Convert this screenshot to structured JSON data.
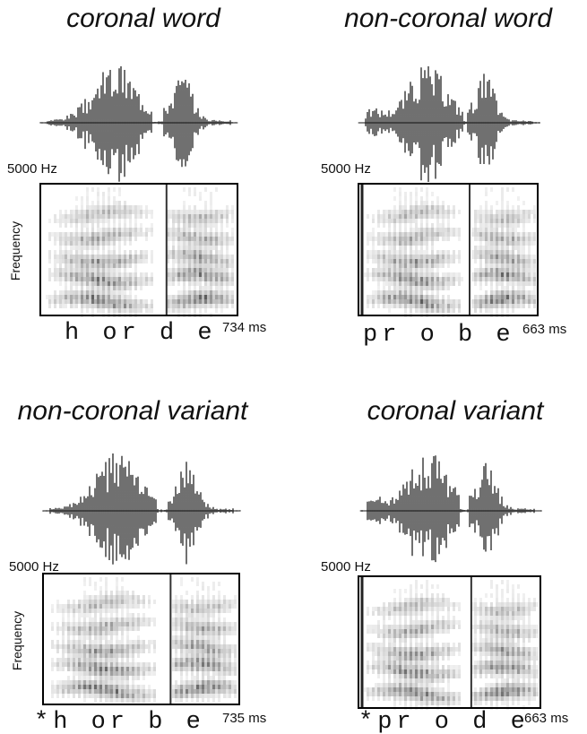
{
  "panels": [
    {
      "title": "coronal word",
      "frequency_label": "5000 Hz",
      "axis_label": "Frequency",
      "segments": "h or d e",
      "duration": "734 ms"
    },
    {
      "title": "non-coronal word",
      "frequency_label": "5000 Hz",
      "segments": "pr o b e",
      "duration": "663 ms"
    },
    {
      "title": "non-coronal variant",
      "frequency_label": "5000 Hz",
      "axis_label": "Frequency",
      "segments": "*h or b e",
      "duration": "735 ms"
    },
    {
      "title": "coronal variant",
      "frequency_label": "5000 Hz",
      "segments": "*pr o d e",
      "duration": "663 ms"
    }
  ]
}
